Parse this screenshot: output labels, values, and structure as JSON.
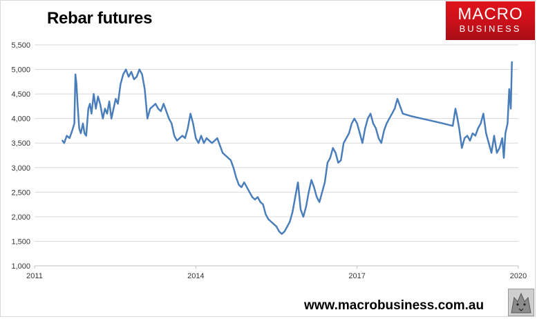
{
  "header": {
    "title": "Rebar futures",
    "logo_line1": "MACRO",
    "logo_line2": "BUSINESS"
  },
  "footer": {
    "url": "www.macrobusiness.com.au"
  },
  "colors": {
    "line": "#4a7ebb",
    "grid": "#d9d9d9",
    "logo_red": "#d2121a"
  },
  "chart_data": {
    "type": "line",
    "title": "Rebar futures",
    "xlabel": "",
    "ylabel": "",
    "ylim": [
      1000,
      5500
    ],
    "yticks": [
      1000,
      1500,
      2000,
      2500,
      3000,
      3500,
      4000,
      4500,
      5000,
      5500
    ],
    "ytick_labels": [
      "1,000",
      "1,500",
      "2,000",
      "2,500",
      "3,000",
      "3,500",
      "4,000",
      "4,500",
      "5,000",
      "5,500"
    ],
    "xlim": [
      2011.0,
      2020.0
    ],
    "xticks": [
      2011,
      2014,
      2017,
      2020
    ],
    "xtick_labels": [
      "2011",
      "2014",
      "2017",
      "2020"
    ],
    "grid": "horizontal",
    "legend": "none",
    "series": [
      {
        "x": [
          2011.52,
          2011.55,
          2011.6,
          2011.65,
          2011.7,
          2011.74,
          2011.76,
          2011.78,
          2011.8,
          2011.83,
          2011.86,
          2011.9,
          2011.93,
          2011.96,
          2012.0,
          2012.03,
          2012.06,
          2012.1,
          2012.14,
          2012.18,
          2012.22,
          2012.27,
          2012.31,
          2012.35,
          2012.39,
          2012.43,
          2012.47,
          2012.51,
          2012.55,
          2012.6,
          2012.65,
          2012.7,
          2012.75,
          2012.8,
          2012.85,
          2012.9,
          2012.95,
          2013.0,
          2013.05,
          2013.1,
          2013.15,
          2013.2,
          2013.25,
          2013.3,
          2013.35,
          2013.4,
          2013.45,
          2013.5,
          2013.55,
          2013.6,
          2013.65,
          2013.7,
          2013.75,
          2013.8,
          2013.85,
          2013.9,
          2013.95,
          2014.0,
          2014.05,
          2014.1,
          2014.15,
          2014.2,
          2014.25,
          2014.3,
          2014.35,
          2014.4,
          2014.45,
          2014.5,
          2014.55,
          2014.6,
          2014.65,
          2014.7,
          2014.75,
          2014.8,
          2014.85,
          2014.9,
          2014.95,
          2015.0,
          2015.05,
          2015.1,
          2015.15,
          2015.2,
          2015.25,
          2015.3,
          2015.35,
          2015.4,
          2015.45,
          2015.5,
          2015.55,
          2015.6,
          2015.65,
          2015.7,
          2015.75,
          2015.8,
          2015.85,
          2015.9,
          2015.95,
          2016.0,
          2016.05,
          2016.1,
          2016.15,
          2016.2,
          2016.25,
          2016.3,
          2016.35,
          2016.4,
          2016.45,
          2016.5,
          2016.55,
          2016.6,
          2016.65,
          2016.7,
          2016.75,
          2016.8,
          2016.85,
          2016.9,
          2016.95,
          2017.0,
          2017.05,
          2017.1,
          2017.15,
          2017.2,
          2017.25,
          2017.3,
          2017.35,
          2017.4,
          2017.45,
          2017.5,
          2017.55,
          2017.6,
          2017.65,
          2017.7,
          2017.75,
          2017.8,
          2017.85,
          2018.0,
          2018.2,
          2018.4,
          2018.6,
          2018.78,
          2018.83,
          2018.86,
          2018.9,
          2018.95,
          2019.0,
          2019.05,
          2019.1,
          2019.15,
          2019.2,
          2019.25,
          2019.3,
          2019.35,
          2019.4,
          2019.45,
          2019.5,
          2019.55,
          2019.6,
          2019.65,
          2019.7,
          2019.73,
          2019.76,
          2019.8,
          2019.83,
          2019.86,
          2019.88
        ],
        "y": [
          3550,
          3500,
          3650,
          3600,
          3750,
          3900,
          4900,
          4700,
          4300,
          3800,
          3700,
          3900,
          3700,
          3650,
          4200,
          4300,
          4100,
          4500,
          4200,
          4450,
          4300,
          4000,
          4200,
          4100,
          4350,
          4000,
          4200,
          4400,
          4300,
          4700,
          4900,
          5000,
          4850,
          4950,
          4800,
          4850,
          5000,
          4900,
          4600,
          4000,
          4200,
          4250,
          4300,
          4200,
          4150,
          4300,
          4150,
          4000,
          3900,
          3650,
          3550,
          3600,
          3650,
          3600,
          3800,
          4100,
          3900,
          3600,
          3500,
          3650,
          3500,
          3600,
          3550,
          3500,
          3550,
          3600,
          3450,
          3300,
          3250,
          3200,
          3150,
          3000,
          2800,
          2650,
          2600,
          2700,
          2600,
          2500,
          2400,
          2350,
          2400,
          2300,
          2250,
          2050,
          1950,
          1900,
          1850,
          1800,
          1700,
          1650,
          1700,
          1800,
          1900,
          2100,
          2400,
          2700,
          2150,
          2000,
          2200,
          2500,
          2750,
          2600,
          2400,
          2300,
          2500,
          2700,
          3100,
          3200,
          3400,
          3300,
          3100,
          3150,
          3500,
          3600,
          3700,
          3900,
          4000,
          3900,
          3700,
          3500,
          3800,
          4000,
          4100,
          3900,
          3800,
          3600,
          3500,
          3750,
          3900,
          4000,
          4100,
          4200,
          4400,
          4250,
          4100,
          4050,
          4000,
          3950,
          3900,
          3850,
          4200,
          4050,
          3800,
          3400,
          3600,
          3650,
          3550,
          3700,
          3650,
          3800,
          3900,
          4100,
          3700,
          3500,
          3300,
          3650,
          3300,
          3400,
          3600,
          3200,
          3700,
          3900,
          4600,
          4200,
          5150
        ]
      }
    ]
  }
}
